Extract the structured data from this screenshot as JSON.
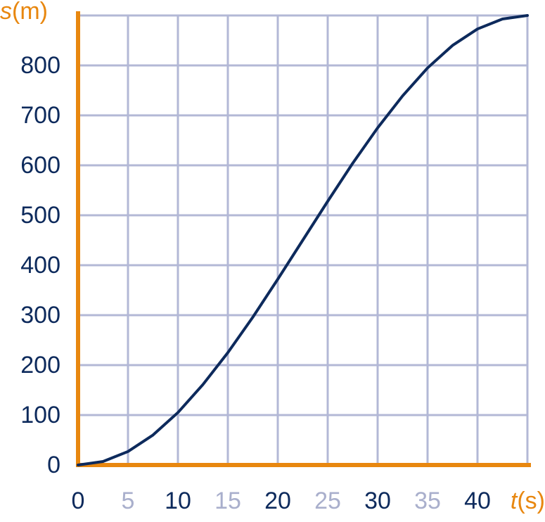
{
  "chart_data": {
    "type": "line",
    "x_label": {
      "symbol": "t",
      "unit": "(s)"
    },
    "y_label": {
      "symbol": "s",
      "unit": "(m)"
    },
    "x": [
      0,
      2.5,
      5,
      7.5,
      10,
      12.5,
      15,
      17.5,
      20,
      22.5,
      25,
      27.5,
      30,
      32.5,
      35,
      37.5,
      40,
      42.5,
      45
    ],
    "series": [
      {
        "color": "#0d2a5c",
        "values": [
          0,
          7,
          27,
          60,
          105,
          161,
          225,
          296,
          372,
          450,
          528,
          604,
          675,
          739,
          795,
          840,
          873,
          893,
          900
        ]
      }
    ],
    "xlim": [
      0,
      45
    ],
    "ylim": [
      0,
      900
    ],
    "xticks": [
      0,
      5,
      10,
      15,
      20,
      25,
      30,
      35,
      40
    ],
    "yticks": [
      0,
      100,
      200,
      300,
      400,
      500,
      600,
      700,
      800
    ],
    "xtick_label_colors": [
      "#0d2a5c",
      "#a9afcc"
    ],
    "ytick_label_color": "#0d2a5c",
    "axis_color": "#e8870f",
    "grid_color": "#b3b8d6",
    "grid": true
  }
}
